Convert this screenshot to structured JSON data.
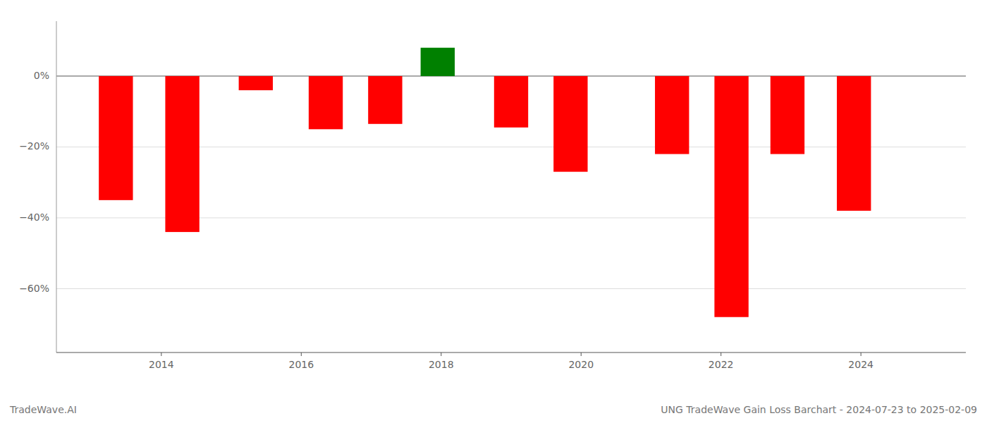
{
  "chart_data": {
    "type": "bar",
    "title": "UNG TradeWave Gain Loss Barchart - 2024-07-23 to 2025-02-09",
    "annotations": [
      "TradeWave.AI"
    ],
    "x": [
      2013.35,
      2014.3,
      2015.35,
      2016.35,
      2017.2,
      2017.95,
      2019.0,
      2019.85,
      2021.3,
      2022.15,
      2022.95,
      2023.9
    ],
    "values": [
      -0.35,
      -0.44,
      -0.04,
      -0.15,
      -0.135,
      0.08,
      -0.145,
      -0.27,
      -0.22,
      -0.68,
      -0.22,
      -0.38
    ],
    "colors": [
      "#ff0000",
      "#ff0000",
      "#ff0000",
      "#ff0000",
      "#ff0000",
      "#008000",
      "#ff0000",
      "#ff0000",
      "#ff0000",
      "#ff0000",
      "#ff0000",
      "#ff0000"
    ],
    "xlim": [
      2012.5,
      2025.5
    ],
    "ylim": [
      -0.78,
      0.155
    ],
    "xticks": [
      2014,
      2016,
      2018,
      2020,
      2022,
      2024
    ],
    "yticks": [
      {
        "value": 0.0,
        "label": "0%"
      },
      {
        "value": -0.2,
        "label": "−20%"
      },
      {
        "value": -0.4,
        "label": "−40%"
      },
      {
        "value": -0.6,
        "label": "−60%"
      }
    ],
    "grid": true
  }
}
